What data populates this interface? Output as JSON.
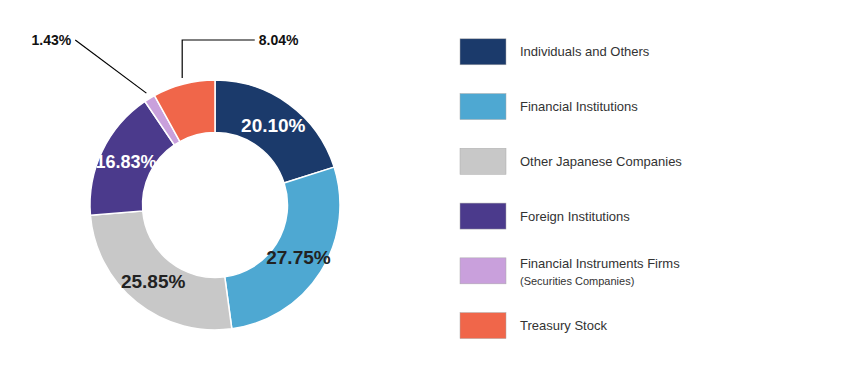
{
  "chart_data": {
    "type": "pie",
    "categories": [
      "Individuals and Others",
      "Financial Institutions",
      "Other Japanese Companies",
      "Foreign Institutions",
      "Financial Instruments Firms (Securities Companies)",
      "Treasury Stock"
    ],
    "values": [
      20.1,
      27.75,
      25.85,
      16.83,
      1.43,
      8.04
    ],
    "value_labels": [
      "20.10%",
      "27.75%",
      "25.85%",
      "16.83%",
      "1.43%",
      "8.04%"
    ],
    "colors": [
      "#1b3a6b",
      "#4ea8d2",
      "#c8c8c8",
      "#4b3a8c",
      "#c9a0dc",
      "#f0664a"
    ],
    "data_labels": true,
    "legend": "right"
  }
}
